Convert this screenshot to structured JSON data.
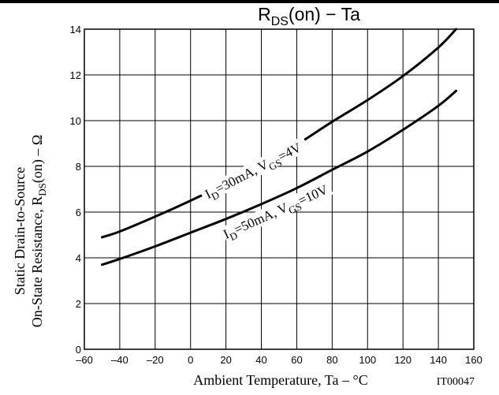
{
  "chart_data": {
    "type": "line",
    "title": {
      "main": "R",
      "sub": "DS",
      "rest": "(on)  −  Ta"
    },
    "xlabel": "Ambient Temperature, Ta  –  °C",
    "ylabel": {
      "line1": "Static Drain-to-Source",
      "line2_pre": "On-State Resistance, R",
      "line2_sub": "DS",
      "line2_post": "(on)  –  Ω"
    },
    "figure_id": "IT00047",
    "xlim": [
      -60,
      160
    ],
    "ylim": [
      0,
      14
    ],
    "x_ticks": [
      -60,
      -40,
      -20,
      0,
      20,
      40,
      60,
      80,
      100,
      120,
      140,
      160
    ],
    "y_ticks": [
      0,
      2,
      4,
      6,
      8,
      10,
      12,
      14
    ],
    "x_tick_labels": [
      "–60",
      "–40",
      "–20",
      "0",
      "20",
      "40",
      "60",
      "80",
      "100",
      "120",
      "140",
      "160"
    ],
    "y_tick_labels": [
      "0",
      "2",
      "4",
      "6",
      "8",
      "10",
      "12",
      "14"
    ],
    "grid": true,
    "series": [
      {
        "label_parts": [
          [
            "I",
            ""
          ],
          [
            "D",
            "sub"
          ],
          [
            "=30mA, V",
            ""
          ],
          [
            "GS",
            "sub"
          ],
          [
            "=4V",
            ""
          ]
        ],
        "x": [
          -50,
          -40,
          -20,
          0,
          20,
          40,
          60,
          80,
          100,
          120,
          140,
          150
        ],
        "y": [
          4.9,
          5.15,
          5.8,
          6.5,
          7.25,
          8.05,
          8.95,
          9.95,
          10.9,
          11.95,
          13.2,
          14.0
        ]
      },
      {
        "label_parts": [
          [
            "I",
            ""
          ],
          [
            "D",
            "sub"
          ],
          [
            "=50mA, V",
            ""
          ],
          [
            "GS",
            "sub"
          ],
          [
            "=10V",
            ""
          ]
        ],
        "x": [
          -50,
          -40,
          -20,
          0,
          20,
          40,
          60,
          80,
          100,
          120,
          140,
          150
        ],
        "y": [
          3.7,
          3.95,
          4.5,
          5.1,
          5.7,
          6.35,
          7.05,
          7.85,
          8.65,
          9.6,
          10.65,
          11.3
        ]
      }
    ]
  }
}
